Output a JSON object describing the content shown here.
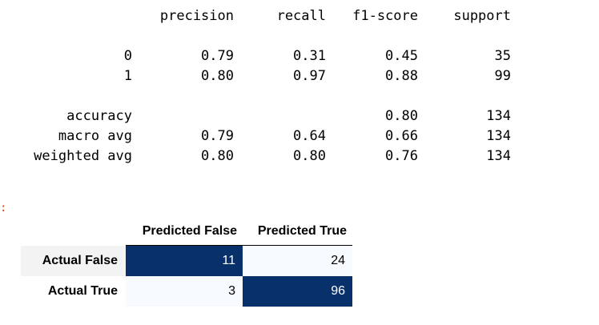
{
  "report": {
    "headers": [
      "precision",
      "recall",
      "f1-score",
      "support"
    ],
    "rows": [
      {
        "label": "0",
        "precision": "0.79",
        "recall": "0.31",
        "f1": "0.45",
        "support": "35"
      },
      {
        "label": "1",
        "precision": "0.80",
        "recall": "0.97",
        "f1": "0.88",
        "support": "99"
      },
      {
        "label": "accuracy",
        "precision": "",
        "recall": "",
        "f1": "0.80",
        "support": "134"
      },
      {
        "label": "macro avg",
        "precision": "0.79",
        "recall": "0.64",
        "f1": "0.66",
        "support": "134"
      },
      {
        "label": "weighted avg",
        "precision": "0.80",
        "recall": "0.80",
        "f1": "0.76",
        "support": "134"
      }
    ]
  },
  "output_marker": ":",
  "confusion_matrix": {
    "col_headers": [
      "Predicted False",
      "Predicted True"
    ],
    "rows": [
      {
        "label": "Actual False",
        "values": [
          "11",
          "24"
        ]
      },
      {
        "label": "Actual True",
        "values": [
          "3",
          "96"
        ]
      }
    ],
    "colors": {
      "high": "#08306b",
      "low": "#f7fbff",
      "high_text": "#ffffff",
      "low_text": "#000000"
    }
  }
}
